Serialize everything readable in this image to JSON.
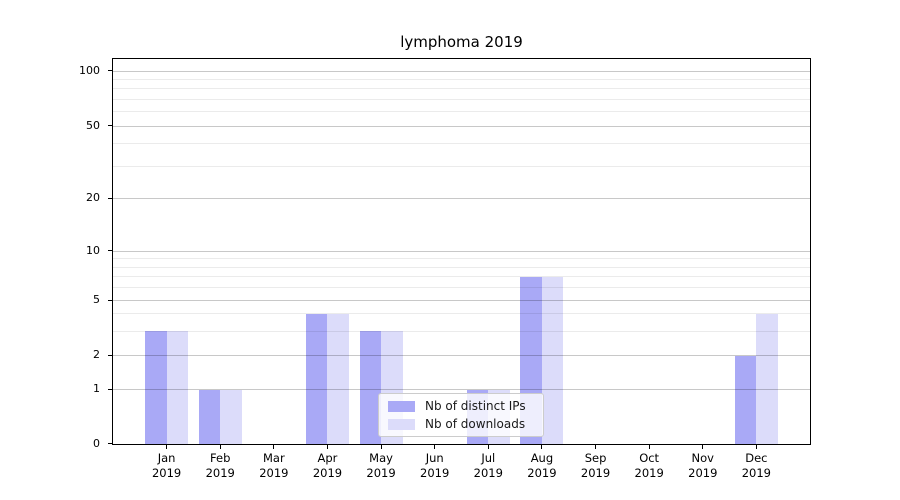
{
  "title": "lymphoma 2019",
  "legend": {
    "items": [
      {
        "label": "Nb of distinct IPs",
        "color": "#a9a9f6"
      },
      {
        "label": "Nb of downloads",
        "color": "#dcdcfa"
      }
    ]
  },
  "chart_data": {
    "type": "bar",
    "title": "lymphoma 2019",
    "categories": [
      "Jan 2019",
      "Feb 2019",
      "Mar 2019",
      "Apr 2019",
      "May 2019",
      "Jun 2019",
      "Jul 2019",
      "Aug 2019",
      "Sep 2019",
      "Oct 2019",
      "Nov 2019",
      "Dec 2019"
    ],
    "series": [
      {
        "name": "Nb of distinct IPs",
        "color": "#a9a9f6",
        "values": [
          3,
          1,
          0,
          4,
          3,
          0,
          1,
          7,
          0,
          0,
          0,
          2
        ]
      },
      {
        "name": "Nb of downloads",
        "color": "#dcdcfa",
        "values": [
          3,
          1,
          0,
          4,
          3,
          0,
          1,
          7,
          0,
          0,
          0,
          4
        ]
      }
    ],
    "xlabel": "",
    "ylabel": "",
    "y_axis": {
      "scale": "log-like (linear 0-1, log above)",
      "major_ticks": [
        0,
        1,
        2,
        5,
        10,
        20,
        50,
        100
      ],
      "tick_labels": [
        "0",
        "1",
        "2",
        "5",
        "10",
        "20",
        "50",
        "100"
      ],
      "minor_gridlines": [
        3,
        4,
        6,
        7,
        8,
        9,
        30,
        40,
        60,
        70,
        80,
        90
      ],
      "ylim": [
        0,
        115
      ]
    },
    "grid": true,
    "legend_position": "lower center"
  }
}
